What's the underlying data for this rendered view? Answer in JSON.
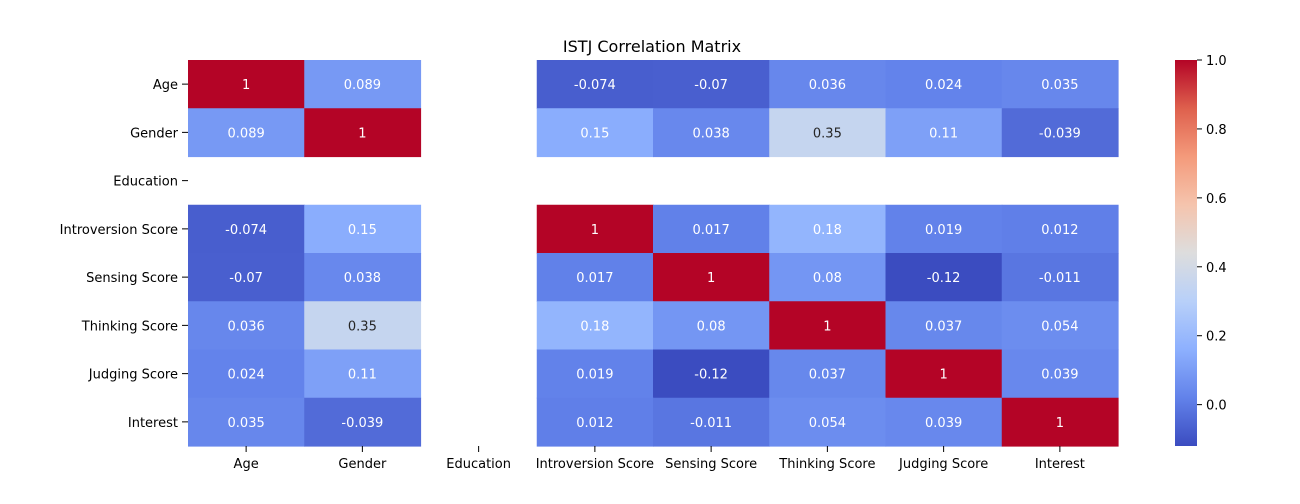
{
  "chart_data": {
    "type": "heatmap",
    "title": "ISTJ Correlation Matrix",
    "xlabel": "",
    "ylabel": "",
    "row_labels": [
      "Age",
      "Gender",
      "Education",
      "Introversion Score",
      "Sensing Score",
      "Thinking Score",
      "Judging Score",
      "Interest"
    ],
    "col_labels": [
      "Age",
      "Gender",
      "Education",
      "Introversion Score",
      "Sensing Score",
      "Thinking Score",
      "Judging Score",
      "Interest"
    ],
    "values": [
      [
        1,
        0.089,
        null,
        -0.074,
        -0.07,
        0.036,
        0.024,
        0.035
      ],
      [
        0.089,
        1,
        null,
        0.15,
        0.038,
        0.35,
        0.11,
        -0.039
      ],
      [
        null,
        null,
        null,
        null,
        null,
        null,
        null,
        null
      ],
      [
        -0.074,
        0.15,
        null,
        1,
        0.017,
        0.18,
        0.019,
        0.012
      ],
      [
        -0.07,
        0.038,
        null,
        0.017,
        1,
        0.08,
        -0.12,
        -0.011
      ],
      [
        0.036,
        0.35,
        null,
        0.18,
        0.08,
        1,
        0.037,
        0.054
      ],
      [
        0.024,
        0.11,
        null,
        0.019,
        -0.12,
        0.037,
        1,
        0.039
      ],
      [
        0.035,
        -0.039,
        null,
        0.012,
        -0.011,
        0.054,
        0.039,
        1
      ]
    ],
    "labels": [
      [
        "1",
        "0.089",
        "",
        "-0.074",
        "-0.07",
        "0.036",
        "0.024",
        "0.035"
      ],
      [
        "0.089",
        "1",
        "",
        "0.15",
        "0.038",
        "0.35",
        "0.11",
        "-0.039"
      ],
      [
        "",
        "",
        "",
        "",
        "",
        "",
        "",
        ""
      ],
      [
        "-0.074",
        "0.15",
        "",
        "1",
        "0.017",
        "0.18",
        "0.019",
        "0.012"
      ],
      [
        "-0.07",
        "0.038",
        "",
        "0.017",
        "1",
        "0.08",
        "-0.12",
        "-0.011"
      ],
      [
        "0.036",
        "0.35",
        "",
        "0.18",
        "0.08",
        "1",
        "0.037",
        "0.054"
      ],
      [
        "0.024",
        "0.11",
        "",
        "0.019",
        "-0.12",
        "0.037",
        "1",
        "0.039"
      ],
      [
        "0.035",
        "-0.039",
        "",
        "0.012",
        "-0.011",
        "0.054",
        "0.039",
        "1"
      ]
    ],
    "colormap": "coolwarm",
    "vmin": -0.12,
    "vmax": 1.0,
    "colorbar": {
      "ticks": [
        0.0,
        0.2,
        0.4,
        0.6,
        0.8,
        1.0
      ],
      "tick_labels": [
        "0.0",
        "0.2",
        "0.4",
        "0.6",
        "0.8",
        "1.0"
      ]
    },
    "grid": false
  }
}
